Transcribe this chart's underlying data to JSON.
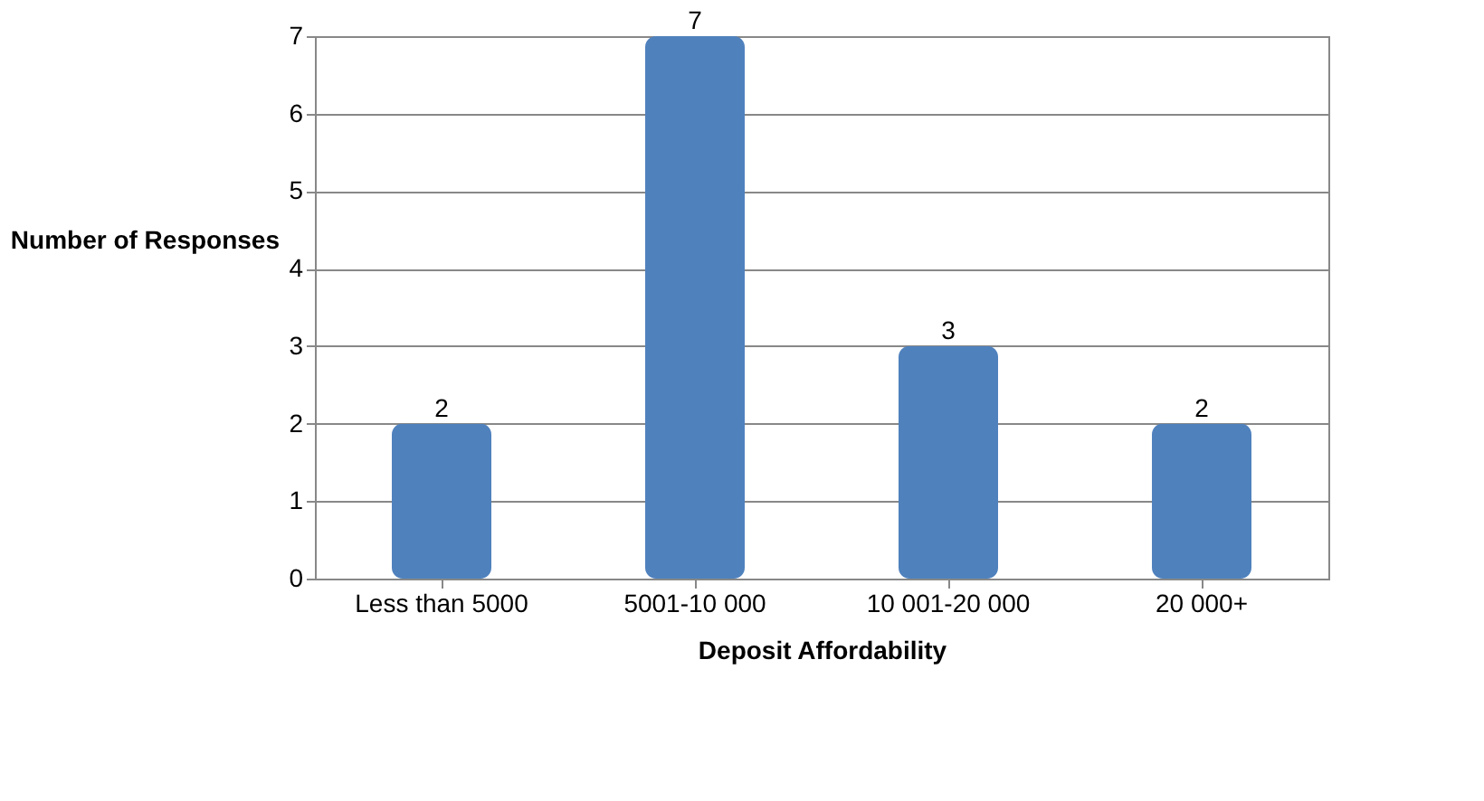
{
  "chart_data": {
    "type": "bar",
    "categories": [
      "Less than 5000",
      "5001-10 000",
      "10 001-20 000",
      "20 000+"
    ],
    "values": [
      2,
      7,
      3,
      2
    ],
    "color": "#4f81bd",
    "xlabel": "Deposit Affordability",
    "ylabel": "Number of Responses",
    "ylim": [
      0,
      7
    ],
    "yticks": [
      0,
      1,
      2,
      3,
      4,
      5,
      6,
      7
    ],
    "grid": "y",
    "data_labels": true
  }
}
